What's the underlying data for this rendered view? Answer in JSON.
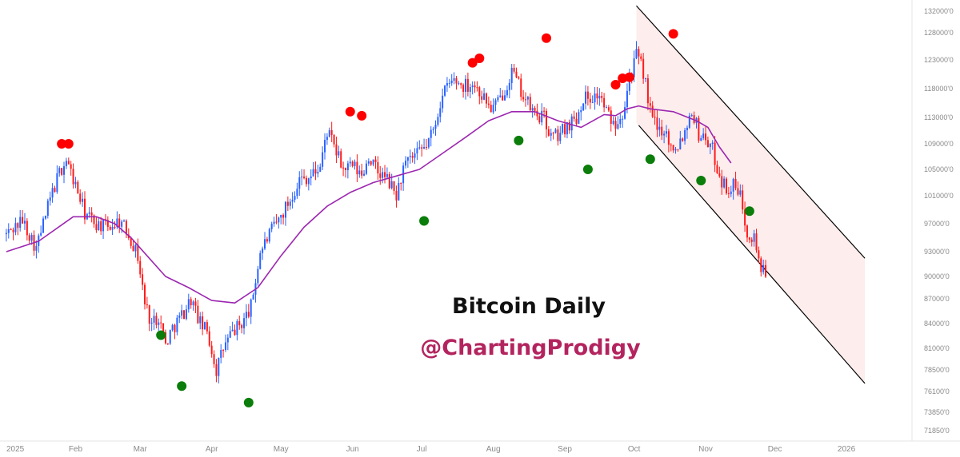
{
  "chart_data": {
    "type": "candlestick",
    "title": "Bitcoin Daily",
    "subtitle": "@ChartingProdigy",
    "y_ticks": [
      "132000'0",
      "128000'0",
      "123000'0",
      "118000'0",
      "113000'0",
      "109000'0",
      "105000'0",
      "101000'0",
      "97000'0",
      "93000'0",
      "90000'0",
      "87000'0",
      "84000'0",
      "81000'0",
      "78500'0",
      "76100'0",
      "73850'0",
      "71850'0"
    ],
    "x_ticks": [
      "2025",
      "Feb",
      "Mar",
      "Apr",
      "May",
      "Jun",
      "Jul",
      "Aug",
      "Sep",
      "Oct",
      "Nov",
      "Dec",
      "2026"
    ],
    "grid": false,
    "colors": {
      "up": "#2962ff",
      "down": "#ff1a1a",
      "moving_average": "#9c27b0",
      "top_marker": "#ff0000",
      "bottom_marker": "#0a7d0a",
      "channel_line": "#000000",
      "channel_fill": "#fdeaea",
      "subtitle": "#b3245f"
    },
    "price_path": [
      [
        1,
        95500
      ],
      [
        8,
        97500
      ],
      [
        14,
        93500
      ],
      [
        20,
        100500
      ],
      [
        24,
        104500
      ],
      [
        27,
        106500
      ],
      [
        31,
        102500
      ],
      [
        35,
        98500
      ],
      [
        40,
        97000
      ],
      [
        45,
        96500
      ],
      [
        50,
        97500
      ],
      [
        54,
        95500
      ],
      [
        58,
        92500
      ],
      [
        61,
        86500
      ],
      [
        64,
        84000
      ],
      [
        67,
        85000
      ],
      [
        70,
        81500
      ],
      [
        73,
        83500
      ],
      [
        77,
        85000
      ],
      [
        81,
        87000
      ],
      [
        85,
        84000
      ],
      [
        88,
        83000
      ],
      [
        92,
        78500
      ],
      [
        95,
        81000
      ],
      [
        99,
        83000
      ],
      [
        103,
        84000
      ],
      [
        107,
        86000
      ],
      [
        111,
        93000
      ],
      [
        115,
        95500
      ],
      [
        119,
        97500
      ],
      [
        124,
        100500
      ],
      [
        128,
        103500
      ],
      [
        133,
        104000
      ],
      [
        137,
        105500
      ],
      [
        140,
        111000
      ],
      [
        143,
        108500
      ],
      [
        147,
        105000
      ],
      [
        151,
        105500
      ],
      [
        155,
        104000
      ],
      [
        158,
        107000
      ],
      [
        162,
        104500
      ],
      [
        166,
        103500
      ],
      [
        170,
        101000
      ],
      [
        173,
        105000
      ],
      [
        176,
        106500
      ],
      [
        180,
        107500
      ],
      [
        183,
        108800
      ],
      [
        186,
        111000
      ],
      [
        189,
        115500
      ],
      [
        192,
        118500
      ],
      [
        195,
        119500
      ],
      [
        199,
        118500
      ],
      [
        203,
        119000
      ],
      [
        207,
        117000
      ],
      [
        211,
        114500
      ],
      [
        214,
        115500
      ],
      [
        217,
        118000
      ],
      [
        220,
        121000
      ],
      [
        223,
        118500
      ],
      [
        226,
        116000
      ],
      [
        230,
        113500
      ],
      [
        234,
        113000
      ],
      [
        237,
        110000
      ],
      [
        241,
        110500
      ],
      [
        244,
        112000
      ],
      [
        248,
        113000
      ],
      [
        251,
        116500
      ],
      [
        255,
        116500
      ],
      [
        258,
        117000
      ],
      [
        261,
        114000
      ],
      [
        264,
        112000
      ],
      [
        268,
        114000
      ],
      [
        271,
        120000
      ],
      [
        274,
        123800
      ],
      [
        277,
        121000
      ],
      [
        280,
        114000
      ],
      [
        283,
        111000
      ],
      [
        286,
        111500
      ],
      [
        289,
        108500
      ],
      [
        292,
        109000
      ],
      [
        295,
        111000
      ],
      [
        298,
        114500
      ],
      [
        301,
        110500
      ],
      [
        304,
        110000
      ],
      [
        307,
        108000
      ],
      [
        310,
        104000
      ],
      [
        313,
        102000
      ],
      [
        316,
        102500
      ],
      [
        319,
        101000
      ],
      [
        322,
        96000
      ],
      [
        325,
        95000
      ],
      [
        328,
        91000
      ],
      [
        330,
        89800
      ]
    ],
    "moving_average": [
      [
        1,
        93000
      ],
      [
        15,
        94500
      ],
      [
        30,
        98000
      ],
      [
        40,
        98000
      ],
      [
        48,
        97000
      ],
      [
        55,
        95000
      ],
      [
        62,
        92500
      ],
      [
        70,
        90000
      ],
      [
        80,
        88500
      ],
      [
        90,
        86800
      ],
      [
        100,
        86500
      ],
      [
        110,
        88500
      ],
      [
        120,
        92500
      ],
      [
        130,
        96500
      ],
      [
        140,
        99500
      ],
      [
        150,
        101500
      ],
      [
        160,
        103000
      ],
      [
        170,
        104000
      ],
      [
        180,
        105000
      ],
      [
        190,
        107500
      ],
      [
        200,
        110000
      ],
      [
        210,
        112500
      ],
      [
        220,
        114000
      ],
      [
        230,
        114000
      ],
      [
        240,
        112500
      ],
      [
        250,
        111500
      ],
      [
        260,
        113500
      ],
      [
        265,
        113300
      ],
      [
        270,
        114500
      ],
      [
        275,
        115000
      ],
      [
        280,
        114500
      ],
      [
        290,
        114000
      ],
      [
        300,
        112500
      ],
      [
        305,
        111500
      ],
      [
        310,
        108500
      ],
      [
        315,
        106000
      ]
    ],
    "top_markers": [
      {
        "day": 25,
        "value": 109000
      },
      {
        "day": 28,
        "value": 109000
      },
      {
        "day": 150,
        "value": 114000
      },
      {
        "day": 155,
        "value": 113300
      },
      {
        "day": 203,
        "value": 122500
      },
      {
        "day": 206,
        "value": 123300
      },
      {
        "day": 235,
        "value": 127000
      },
      {
        "day": 265,
        "value": 118700
      },
      {
        "day": 268,
        "value": 119800
      },
      {
        "day": 271,
        "value": 120000
      },
      {
        "day": 290,
        "value": 127800
      }
    ],
    "bottom_markers": [
      {
        "day": 68,
        "value": 82600
      },
      {
        "day": 77,
        "value": 76700
      },
      {
        "day": 106,
        "value": 74900
      },
      {
        "day": 182,
        "value": 97400
      },
      {
        "day": 223,
        "value": 109500
      },
      {
        "day": 253,
        "value": 105000
      },
      {
        "day": 280,
        "value": 106600
      },
      {
        "day": 302,
        "value": 103300
      },
      {
        "day": 323,
        "value": 98800
      }
    ],
    "channel": {
      "upper": [
        {
          "day": 274,
          "value": 133000
        },
        {
          "day": 373,
          "value": 92200
        }
      ],
      "lower": [
        {
          "day": 275,
          "value": 111800
        },
        {
          "day": 373,
          "value": 77000
        }
      ],
      "shade_from_day": 274,
      "shade_to_day": 373
    }
  }
}
